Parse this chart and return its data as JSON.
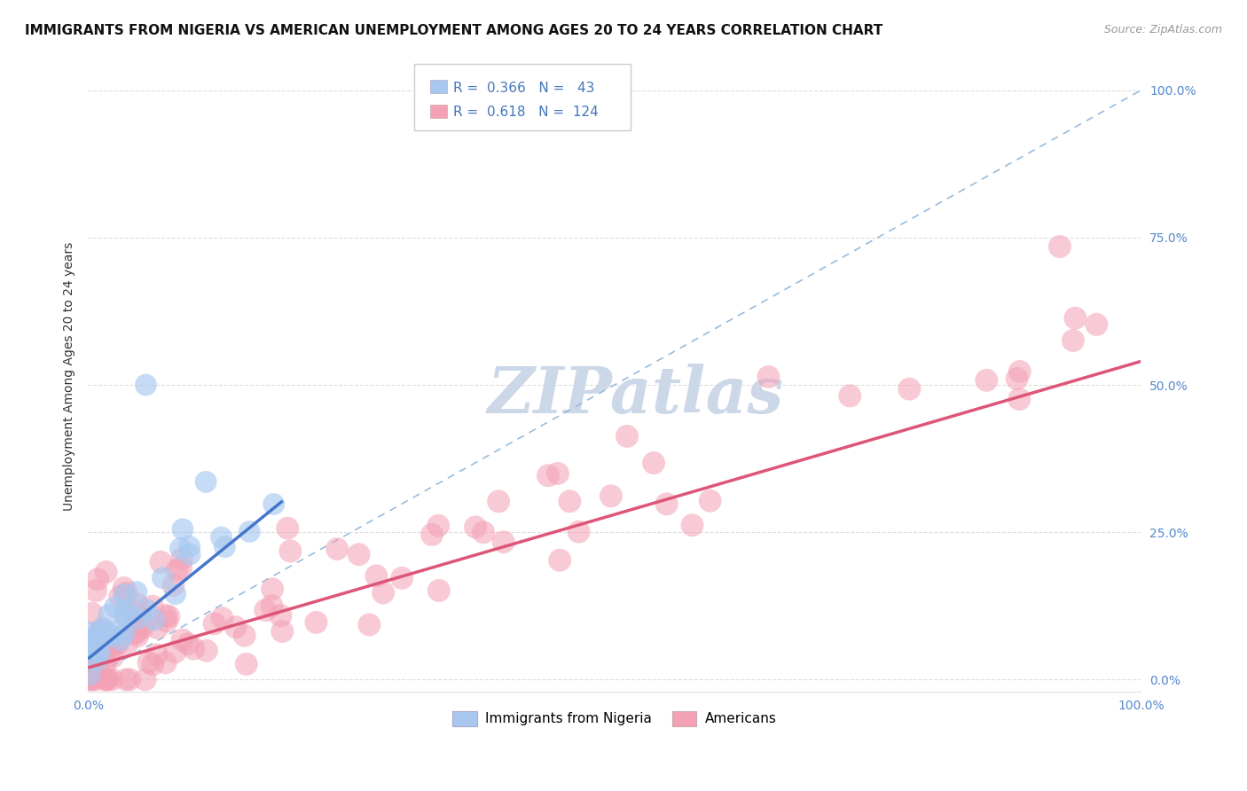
{
  "title": "IMMIGRANTS FROM NIGERIA VS AMERICAN UNEMPLOYMENT AMONG AGES 20 TO 24 YEARS CORRELATION CHART",
  "source": "Source: ZipAtlas.com",
  "ylabel": "Unemployment Among Ages 20 to 24 years",
  "xlim": [
    0.0,
    1.0
  ],
  "ylim": [
    -0.02,
    1.05
  ],
  "x_tick_positions": [
    0.0,
    1.0
  ],
  "x_tick_labels": [
    "0.0%",
    "100.0%"
  ],
  "y_tick_positions": [
    0.0,
    0.25,
    0.5,
    0.75,
    1.0
  ],
  "y_tick_labels": [
    "0.0%",
    "25.0%",
    "50.0%",
    "75.0%",
    "100.0%"
  ],
  "nigeria_R": 0.366,
  "nigeria_N": 43,
  "american_R": 0.618,
  "american_N": 124,
  "nigeria_color": "#a8c8f0",
  "american_color": "#f4a0b5",
  "nigeria_line_color": "#4477cc",
  "american_line_color": "#dd5577",
  "diagonal_line_color": "#99bbdd",
  "watermark_text": "ZIPatlas",
  "background_color": "#ffffff",
  "grid_color": "#dddddd",
  "title_fontsize": 11,
  "axis_label_fontsize": 10,
  "tick_fontsize": 10,
  "legend_fontsize": 11,
  "source_fontsize": 9,
  "watermark_color": "#ccd8e8",
  "watermark_fontsize": 52,
  "nigeria_line_x": [
    0.0,
    0.185
  ],
  "nigeria_line_slope": 1.45,
  "nigeria_line_intercept": 0.035,
  "american_line_x": [
    0.0,
    1.0
  ],
  "american_line_slope": 0.52,
  "american_line_intercept": 0.02
}
